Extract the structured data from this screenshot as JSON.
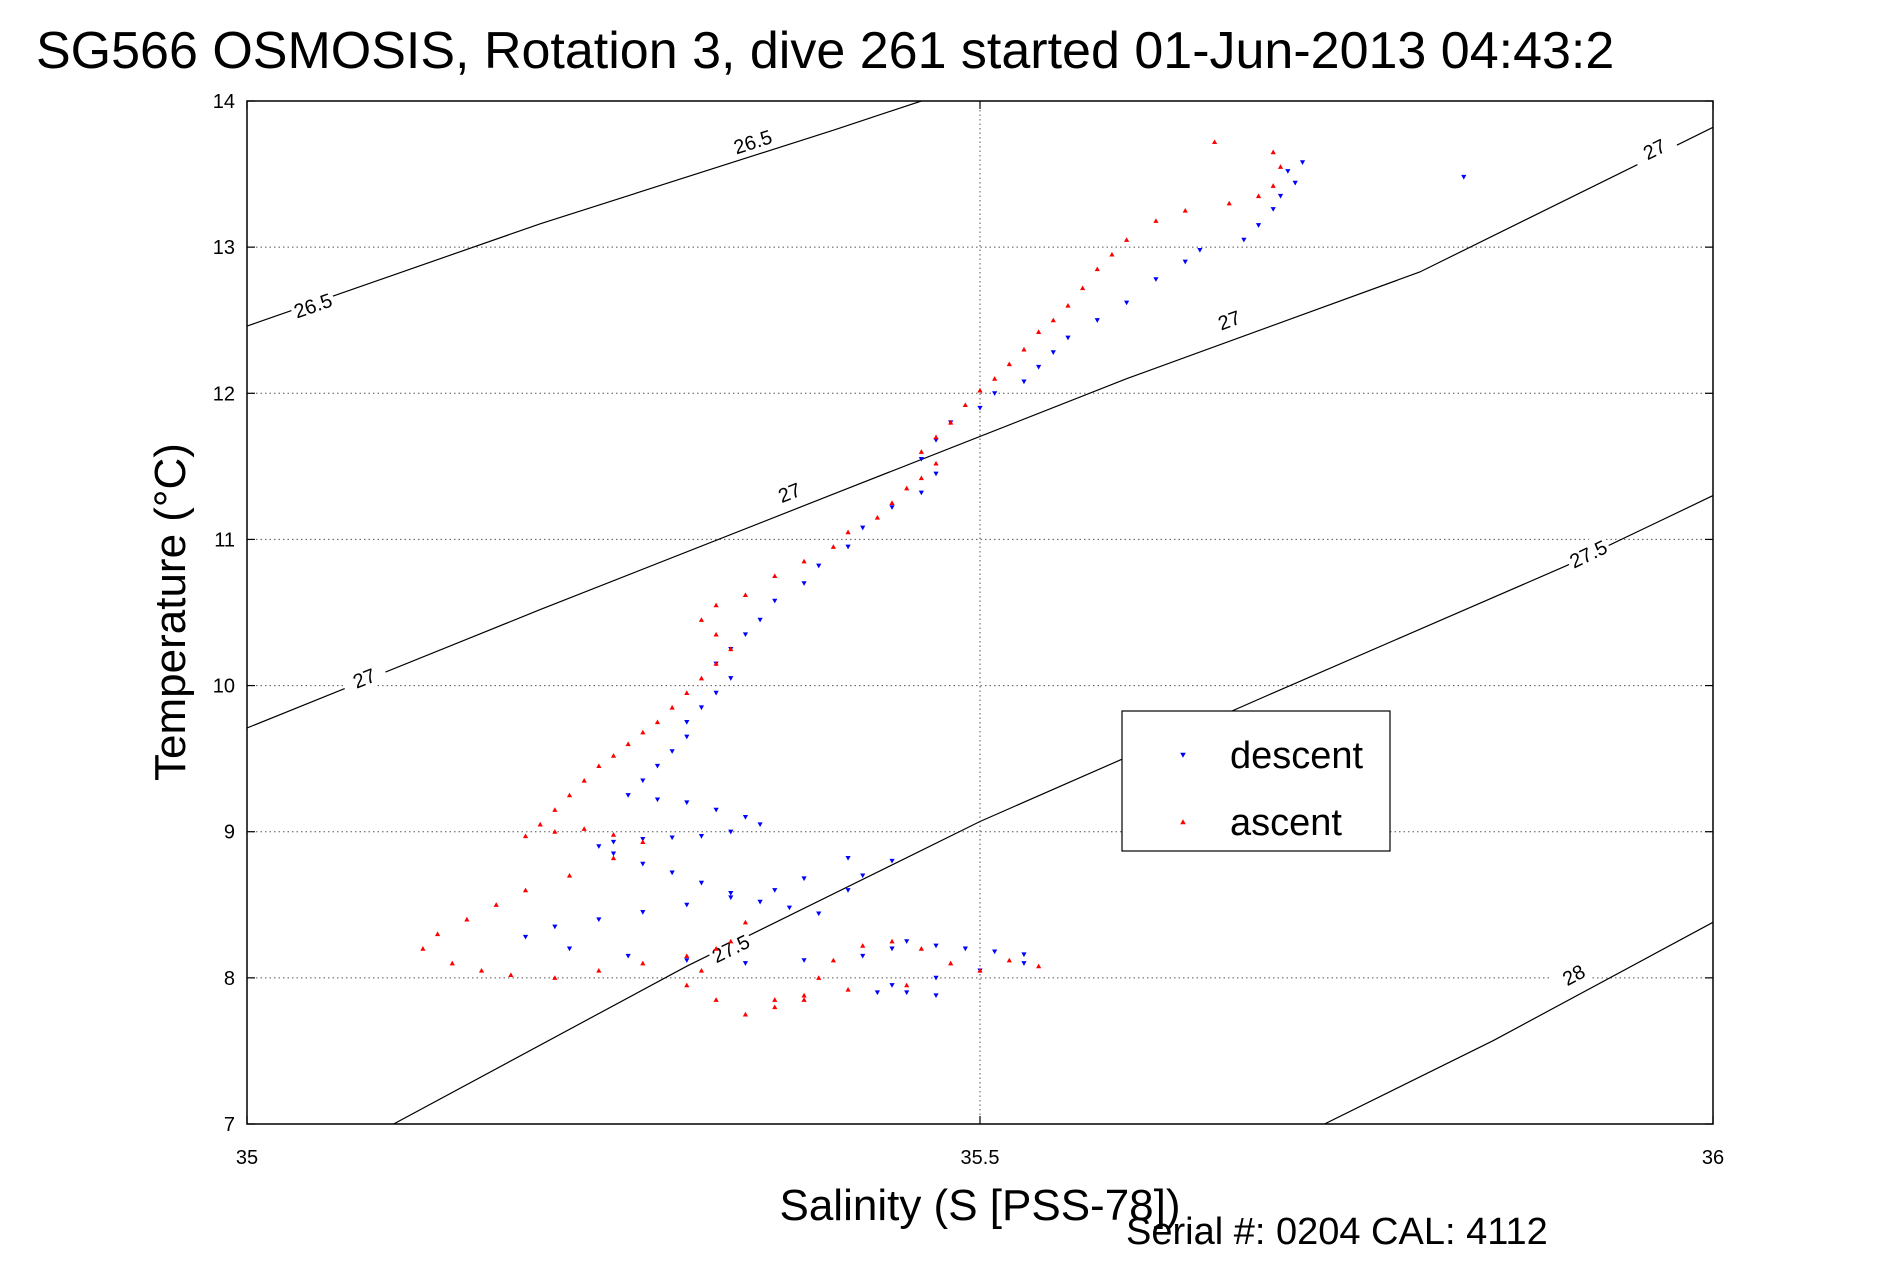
{
  "chart_data": {
    "type": "scatter",
    "title": "SG566 OSMOSIS, Rotation 3, dive 261 started 01-Jun-2013 04:43:2",
    "xlabel": "Salinity (S [PSS-78])",
    "ylabel": "Temperature (°C)",
    "xlim": [
      35,
      36
    ],
    "ylim": [
      7,
      14
    ],
    "xticks": [
      "35",
      "35.5",
      "36"
    ],
    "yticks": [
      "7",
      "8",
      "9",
      "10",
      "11",
      "12",
      "13",
      "14"
    ],
    "grid": true,
    "legend_position": "right",
    "density_contours": [
      {
        "sigma": "26.5",
        "points": [
          [
            35.0,
            12.46
          ],
          [
            35.2,
            13.16
          ],
          [
            35.4,
            13.8
          ],
          [
            35.46,
            14.0
          ]
        ],
        "labels": [
          {
            "text": "26.5",
            "x": 35.045,
            "y": 12.6
          },
          {
            "text": "26.5",
            "x": 35.345,
            "y": 13.72
          }
        ]
      },
      {
        "sigma": "27",
        "points": [
          [
            35.0,
            9.71
          ],
          [
            35.2,
            10.52
          ],
          [
            35.4,
            11.31
          ],
          [
            35.6,
            12.1
          ],
          [
            35.8,
            12.83
          ],
          [
            36.0,
            13.82
          ]
        ],
        "labels": [
          {
            "text": "27",
            "x": 35.08,
            "y": 10.05
          },
          {
            "text": "27",
            "x": 35.37,
            "y": 11.32
          },
          {
            "text": "27",
            "x": 35.67,
            "y": 12.5
          },
          {
            "text": "27",
            "x": 35.96,
            "y": 13.67
          }
        ]
      },
      {
        "sigma": "27.5",
        "points": [
          [
            35.1,
            7.0
          ],
          [
            35.3,
            8.08
          ],
          [
            35.5,
            9.07
          ],
          [
            35.7,
            9.95
          ],
          [
            35.9,
            10.82
          ],
          [
            36.0,
            11.3
          ]
        ],
        "labels": [
          {
            "text": "27.5",
            "x": 35.33,
            "y": 8.2
          },
          {
            "text": "27.5",
            "x": 35.915,
            "y": 10.9
          }
        ]
      },
      {
        "sigma": "28",
        "points": [
          [
            35.735,
            7.0
          ],
          [
            35.85,
            7.57
          ],
          [
            36.0,
            8.38
          ]
        ],
        "labels": [
          {
            "text": "28",
            "x": 35.905,
            "y": 8.02
          }
        ]
      }
    ],
    "series": [
      {
        "name": "descent",
        "color": "#0000ff",
        "marker": "triangle-down",
        "points": [
          [
            35.72,
            13.58
          ],
          [
            35.71,
            13.52
          ],
          [
            35.715,
            13.44
          ],
          [
            35.705,
            13.35
          ],
          [
            35.7,
            13.26
          ],
          [
            35.69,
            13.15
          ],
          [
            35.68,
            13.05
          ],
          [
            35.65,
            12.98
          ],
          [
            35.64,
            12.9
          ],
          [
            35.62,
            12.78
          ],
          [
            35.6,
            12.62
          ],
          [
            35.58,
            12.5
          ],
          [
            35.56,
            12.38
          ],
          [
            35.55,
            12.28
          ],
          [
            35.54,
            12.18
          ],
          [
            35.53,
            12.08
          ],
          [
            35.51,
            12.0
          ],
          [
            35.5,
            11.9
          ],
          [
            35.48,
            11.8
          ],
          [
            35.47,
            11.68
          ],
          [
            35.46,
            11.55
          ],
          [
            35.47,
            11.45
          ],
          [
            35.46,
            11.32
          ],
          [
            35.44,
            11.22
          ],
          [
            35.42,
            11.08
          ],
          [
            35.41,
            10.95
          ],
          [
            35.39,
            10.82
          ],
          [
            35.38,
            10.7
          ],
          [
            35.36,
            10.58
          ],
          [
            35.35,
            10.45
          ],
          [
            35.34,
            10.35
          ],
          [
            35.33,
            10.25
          ],
          [
            35.32,
            10.15
          ],
          [
            35.33,
            10.05
          ],
          [
            35.32,
            9.95
          ],
          [
            35.31,
            9.85
          ],
          [
            35.3,
            9.75
          ],
          [
            35.3,
            9.65
          ],
          [
            35.29,
            9.55
          ],
          [
            35.28,
            9.45
          ],
          [
            35.27,
            9.35
          ],
          [
            35.26,
            9.25
          ],
          [
            35.28,
            9.22
          ],
          [
            35.3,
            9.2
          ],
          [
            35.32,
            9.15
          ],
          [
            35.34,
            9.1
          ],
          [
            35.35,
            9.05
          ],
          [
            35.33,
            9.0
          ],
          [
            35.31,
            8.97
          ],
          [
            35.29,
            8.96
          ],
          [
            35.27,
            8.95
          ],
          [
            35.25,
            8.93
          ],
          [
            35.24,
            8.9
          ],
          [
            35.25,
            8.85
          ],
          [
            35.27,
            8.78
          ],
          [
            35.29,
            8.72
          ],
          [
            35.31,
            8.65
          ],
          [
            35.33,
            8.58
          ],
          [
            35.35,
            8.52
          ],
          [
            35.37,
            8.48
          ],
          [
            35.39,
            8.44
          ],
          [
            35.41,
            8.6
          ],
          [
            35.42,
            8.7
          ],
          [
            35.44,
            8.8
          ],
          [
            35.41,
            8.82
          ],
          [
            35.38,
            8.68
          ],
          [
            35.36,
            8.6
          ],
          [
            35.33,
            8.55
          ],
          [
            35.3,
            8.5
          ],
          [
            35.27,
            8.45
          ],
          [
            35.24,
            8.4
          ],
          [
            35.21,
            8.35
          ],
          [
            35.19,
            8.28
          ],
          [
            35.22,
            8.2
          ],
          [
            35.26,
            8.15
          ],
          [
            35.3,
            8.12
          ],
          [
            35.34,
            8.1
          ],
          [
            35.38,
            8.12
          ],
          [
            35.42,
            8.15
          ],
          [
            35.44,
            8.2
          ],
          [
            35.45,
            8.25
          ],
          [
            35.47,
            8.22
          ],
          [
            35.49,
            8.2
          ],
          [
            35.51,
            8.18
          ],
          [
            35.53,
            8.16
          ],
          [
            35.53,
            8.1
          ],
          [
            35.5,
            8.05
          ],
          [
            35.47,
            8.0
          ],
          [
            35.44,
            7.95
          ],
          [
            35.43,
            7.9
          ],
          [
            35.45,
            7.9
          ],
          [
            35.47,
            7.88
          ],
          [
            35.83,
            13.48
          ]
        ]
      },
      {
        "name": "ascent",
        "color": "#ff0000",
        "marker": "triangle-up",
        "points": [
          [
            35.66,
            13.72
          ],
          [
            35.7,
            13.65
          ],
          [
            35.705,
            13.55
          ],
          [
            35.7,
            13.42
          ],
          [
            35.69,
            13.35
          ],
          [
            35.67,
            13.3
          ],
          [
            35.64,
            13.25
          ],
          [
            35.62,
            13.18
          ],
          [
            35.6,
            13.05
          ],
          [
            35.59,
            12.95
          ],
          [
            35.58,
            12.85
          ],
          [
            35.57,
            12.72
          ],
          [
            35.56,
            12.6
          ],
          [
            35.55,
            12.5
          ],
          [
            35.54,
            12.42
          ],
          [
            35.53,
            12.3
          ],
          [
            35.52,
            12.2
          ],
          [
            35.51,
            12.1
          ],
          [
            35.5,
            12.02
          ],
          [
            35.49,
            11.92
          ],
          [
            35.48,
            11.8
          ],
          [
            35.47,
            11.7
          ],
          [
            35.46,
            11.6
          ],
          [
            35.47,
            11.52
          ],
          [
            35.46,
            11.42
          ],
          [
            35.45,
            11.35
          ],
          [
            35.44,
            11.25
          ],
          [
            35.43,
            11.15
          ],
          [
            35.41,
            11.05
          ],
          [
            35.4,
            10.95
          ],
          [
            35.38,
            10.85
          ],
          [
            35.36,
            10.75
          ],
          [
            35.34,
            10.62
          ],
          [
            35.32,
            10.55
          ],
          [
            35.31,
            10.45
          ],
          [
            35.32,
            10.35
          ],
          [
            35.33,
            10.25
          ],
          [
            35.32,
            10.15
          ],
          [
            35.31,
            10.05
          ],
          [
            35.3,
            9.95
          ],
          [
            35.29,
            9.85
          ],
          [
            35.28,
            9.75
          ],
          [
            35.27,
            9.68
          ],
          [
            35.26,
            9.6
          ],
          [
            35.25,
            9.52
          ],
          [
            35.24,
            9.45
          ],
          [
            35.23,
            9.35
          ],
          [
            35.22,
            9.25
          ],
          [
            35.21,
            9.15
          ],
          [
            35.2,
            9.05
          ],
          [
            35.19,
            8.97
          ],
          [
            35.21,
            9.0
          ],
          [
            35.23,
            9.02
          ],
          [
            35.25,
            8.98
          ],
          [
            35.27,
            8.93
          ],
          [
            35.25,
            8.82
          ],
          [
            35.22,
            8.7
          ],
          [
            35.19,
            8.6
          ],
          [
            35.17,
            8.5
          ],
          [
            35.15,
            8.4
          ],
          [
            35.13,
            8.3
          ],
          [
            35.12,
            8.2
          ],
          [
            35.14,
            8.1
          ],
          [
            35.16,
            8.05
          ],
          [
            35.18,
            8.02
          ],
          [
            35.21,
            8.0
          ],
          [
            35.24,
            8.05
          ],
          [
            35.27,
            8.1
          ],
          [
            35.3,
            8.15
          ],
          [
            35.33,
            8.25
          ],
          [
            35.34,
            8.38
          ],
          [
            35.32,
            8.2
          ],
          [
            35.31,
            8.05
          ],
          [
            35.3,
            7.95
          ],
          [
            35.32,
            7.85
          ],
          [
            35.34,
            7.75
          ],
          [
            35.36,
            7.8
          ],
          [
            35.38,
            7.85
          ],
          [
            35.39,
            8.0
          ],
          [
            35.4,
            8.12
          ],
          [
            35.42,
            8.22
          ],
          [
            35.44,
            8.25
          ],
          [
            35.46,
            8.2
          ],
          [
            35.48,
            8.1
          ],
          [
            35.5,
            8.05
          ],
          [
            35.52,
            8.12
          ],
          [
            35.54,
            8.08
          ],
          [
            35.45,
            7.95
          ],
          [
            35.41,
            7.92
          ],
          [
            35.38,
            7.88
          ],
          [
            35.36,
            7.85
          ]
        ]
      }
    ],
    "legend": {
      "entries": [
        {
          "label": "descent",
          "color": "#0000ff",
          "marker": "triangle-down"
        },
        {
          "label": "ascent",
          "color": "#ff0000",
          "marker": "triangle-up"
        }
      ]
    },
    "annotation": "Serial #: 0204  CAL: 4112"
  }
}
